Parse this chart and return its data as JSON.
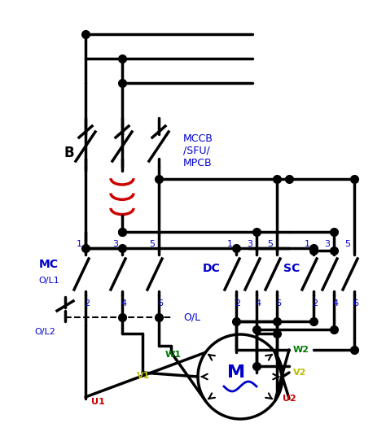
{
  "bg_color": "#ffffff",
  "black": "#000000",
  "red": "#cc0000",
  "blue": "#0000cc",
  "green": "#007700",
  "yellow": "#bbbb00",
  "figsize": [
    4.74,
    5.31
  ],
  "dpi": 100,
  "lw": 2.5,
  "dot_size": 7,
  "phase_labels": [
    "U",
    "V",
    "W"
  ],
  "contactor_labels": [
    "MC",
    "DC",
    "SC"
  ],
  "motor_label": "M"
}
